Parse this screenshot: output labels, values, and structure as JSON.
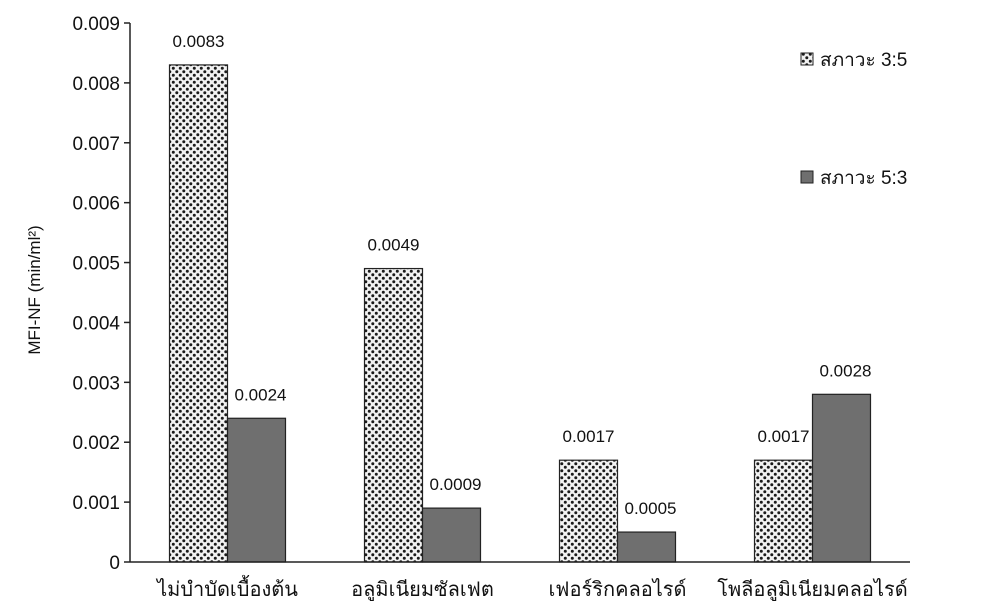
{
  "chart_data": {
    "type": "bar",
    "ylabel": "MFI-NF (min/ml²)",
    "ylim": [
      0,
      0.009
    ],
    "yticks": [
      "0",
      "0.001",
      "0.002",
      "0.003",
      "0.004",
      "0.005",
      "0.006",
      "0.007",
      "0.008",
      "0.009"
    ],
    "categories": [
      "ไม่บำบัดเบื้องต้น",
      "อลูมิเนียมซัลเฟต",
      "เฟอร์ริกคลอไรด์",
      "โพลีอลูมิเนียมคลอไรด์"
    ],
    "series": [
      {
        "name": "สภาวะ 3:5",
        "values": [
          0.0083,
          0.0049,
          0.0017,
          0.0017
        ],
        "labels": [
          "0.0083",
          "0.0049",
          "0.0017",
          "0.0017"
        ],
        "pattern": "dotted",
        "color": "#d9d9d9"
      },
      {
        "name": "สภาวะ 5:3",
        "values": [
          0.0024,
          0.0009,
          0.0005,
          0.0028
        ],
        "labels": [
          "0.0024",
          "0.0009",
          "0.0005",
          "0.0028"
        ],
        "pattern": "solid",
        "color": "#6f6f6f"
      }
    ],
    "grid": false,
    "legend_position": "top-right"
  }
}
